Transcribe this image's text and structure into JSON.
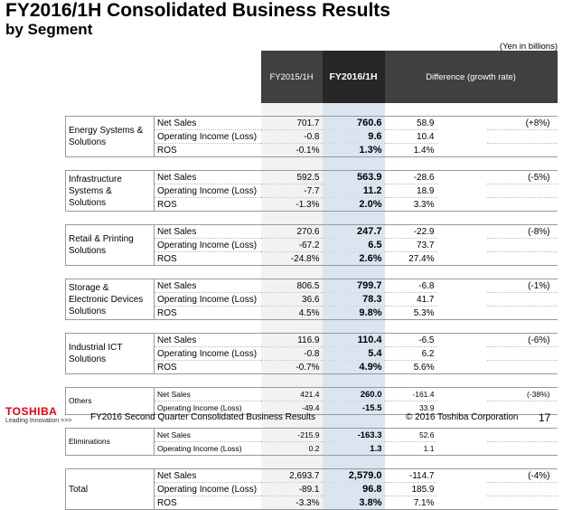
{
  "title": {
    "line1": "FY2016/1H Consolidated Business Results",
    "line2": "by Segment"
  },
  "unit_note": "(Yen in billions)",
  "columns": {
    "prev": "FY2015/1H",
    "cur": "FY2016/1H",
    "diff": "Difference (growth rate)"
  },
  "segments": [
    {
      "name": "Energy Systems & Solutions",
      "rows": [
        {
          "item": "Net Sales",
          "prev": "701.7",
          "cur": "760.6",
          "diff": "58.9",
          "growth": "(+8%)"
        },
        {
          "item": "Operating Income (Loss)",
          "prev": "-0.8",
          "cur": "9.6",
          "diff": "10.4",
          "growth": ""
        },
        {
          "item": "ROS",
          "prev": "-0.1%",
          "cur": "1.3%",
          "diff": "1.4%",
          "growth": ""
        }
      ]
    },
    {
      "name": "Infrastructure Systems & Solutions",
      "rows": [
        {
          "item": "Net Sales",
          "prev": "592.5",
          "cur": "563.9",
          "diff": "-28.6",
          "growth": "(-5%)"
        },
        {
          "item": "Operating Income (Loss)",
          "prev": "-7.7",
          "cur": "11.2",
          "diff": "18.9",
          "growth": ""
        },
        {
          "item": "ROS",
          "prev": "-1.3%",
          "cur": "2.0%",
          "diff": "3.3%",
          "growth": ""
        }
      ]
    },
    {
      "name": "Retail & Printing Solutions",
      "rows": [
        {
          "item": "Net Sales",
          "prev": "270.6",
          "cur": "247.7",
          "diff": "-22.9",
          "growth": "(-8%)"
        },
        {
          "item": "Operating Income (Loss)",
          "prev": "-67.2",
          "cur": "6.5",
          "diff": "73.7",
          "growth": ""
        },
        {
          "item": "ROS",
          "prev": "-24.8%",
          "cur": "2.6%",
          "diff": "27.4%",
          "growth": ""
        }
      ]
    },
    {
      "name": "Storage & Electronic Devices Solutions",
      "rows": [
        {
          "item": "Net Sales",
          "prev": "806.5",
          "cur": "799.7",
          "diff": "-6.8",
          "growth": "(-1%)"
        },
        {
          "item": "Operating Income (Loss)",
          "prev": "36.6",
          "cur": "78.3",
          "diff": "41.7",
          "growth": ""
        },
        {
          "item": "ROS",
          "prev": "4.5%",
          "cur": "9.8%",
          "diff": "5.3%",
          "growth": ""
        }
      ]
    },
    {
      "name": "Industrial ICT Solutions",
      "rows": [
        {
          "item": "Net Sales",
          "prev": "116.9",
          "cur": "110.4",
          "diff": "-6.5",
          "growth": "(-6%)"
        },
        {
          "item": "Operating Income (Loss)",
          "prev": "-0.8",
          "cur": "5.4",
          "diff": "6.2",
          "growth": ""
        },
        {
          "item": "ROS",
          "prev": "-0.7%",
          "cur": "4.9%",
          "diff": "5.6%",
          "growth": ""
        }
      ]
    },
    {
      "name": "Others",
      "rows": [
        {
          "item": "Net Sales",
          "prev": "421.4",
          "cur": "260.0",
          "diff": "-161.4",
          "growth": "(-38%)"
        },
        {
          "item": "Operating Income (Loss)",
          "prev": "-49.4",
          "cur": "-15.5",
          "diff": "33.9",
          "growth": ""
        }
      ]
    },
    {
      "name": "Eliminations",
      "rows": [
        {
          "item": "Net Sales",
          "prev": "-215.9",
          "cur": "-163.3",
          "diff": "52.6",
          "growth": ""
        },
        {
          "item": "Operating Income (Loss)",
          "prev": "0.2",
          "cur": "1.3",
          "diff": "1.1",
          "growth": ""
        }
      ]
    },
    {
      "name": "Total",
      "rows": [
        {
          "item": "Net Sales",
          "prev": "2,693.7",
          "cur": "2,579.0",
          "diff": "-114.7",
          "growth": "(-4%)"
        },
        {
          "item": "Operating Income (Loss)",
          "prev": "-89.1",
          "cur": "96.8",
          "diff": "185.9",
          "growth": ""
        },
        {
          "item": "ROS",
          "prev": "-3.3%",
          "cur": "3.8%",
          "diff": "7.1%",
          "growth": ""
        }
      ]
    }
  ],
  "footer": {
    "logo": "TOSHIBA",
    "tagline": "Leading Innovation >>>",
    "text": "FY2016 Second Quarter Consolidated Business Results",
    "copyright": "© 2016 Toshiba Corporation",
    "page": "17"
  },
  "colors": {
    "header_dark": "#404040",
    "current_col": "#dbe5f1",
    "brand_red": "#e60012"
  }
}
